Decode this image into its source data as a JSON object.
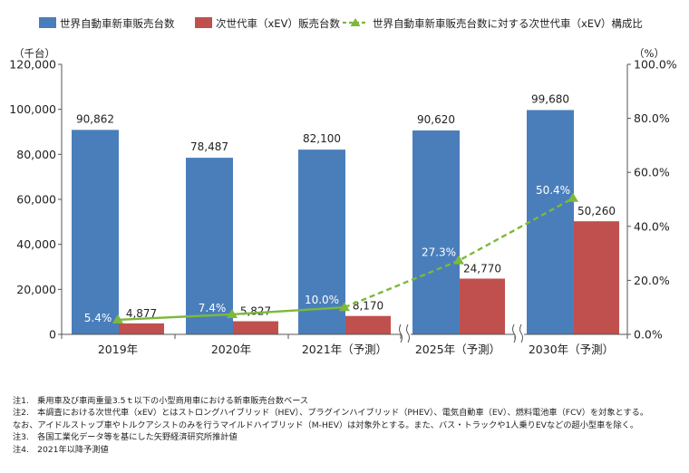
{
  "chart_data": {
    "type": "bar",
    "categories": [
      "2019年",
      "2020年",
      "2021年（予測）",
      "2025年（予測）",
      "2030年（予測）"
    ],
    "series": [
      {
        "name": "世界自動車新車販売台数",
        "type": "bar",
        "axis": "left",
        "color": "#4a7ebb",
        "values": [
          90862,
          78487,
          82100,
          90620,
          99680
        ],
        "labels": [
          "90,862",
          "78,487",
          "82,100",
          "90,620",
          "99,680"
        ]
      },
      {
        "name": "次世代車（xEV）販売台数",
        "type": "bar",
        "axis": "left",
        "color": "#c0504d",
        "values": [
          4877,
          5827,
          8170,
          24770,
          50260
        ],
        "labels": [
          "4,877",
          "5,827",
          "8,170",
          "24,770",
          "50,260"
        ]
      },
      {
        "name": "世界自動車新車販売台数に対する次世代車（xEV）構成比",
        "type": "line",
        "axis": "right",
        "color": "#7cb93a",
        "values": [
          5.4,
          7.4,
          10.0,
          27.3,
          50.4
        ],
        "labels": [
          "5.4%",
          "7.4%",
          "10.0%",
          "27.3%",
          "50.4%"
        ]
      }
    ],
    "y_left": {
      "unit": "（千台）",
      "min": 0,
      "max": 120000,
      "ticks": [
        "0",
        "20,000",
        "40,000",
        "60,000",
        "80,000",
        "100,000",
        "120,000"
      ]
    },
    "y_right": {
      "unit": "（%）",
      "min": 0,
      "max": 100,
      "ticks": [
        "0.0%",
        "20.0%",
        "40.0%",
        "60.0%",
        "80.0%",
        "100.0%"
      ]
    },
    "axis_breaks": [
      "between 2021年（予測） and 2025年（予測）",
      "between 2025年（予測） and 2030年（予測）"
    ],
    "grid": false,
    "legend": "top"
  },
  "colors": {
    "bar_total": "#4a7ebb",
    "bar_xev": "#c0504d",
    "line_ratio": "#7cb93a"
  },
  "notes": [
    "注1.　乗用車及び車両重量3.5ｔ以下の小型商用車における新車販売台数ベース",
    "注2.　本調査における次世代車（xEV）とはストロングハイブリッド（HEV）、プラグインハイブリッド（PHEV）、電気自動車（EV）、燃料電池車（FCV）を対象とする。",
    "なお、アイドルストップ車やトルクアシストのみを行うマイルドハイブリッド（M-HEV）は対象外とする。また、バス・トラックや1人乗りEVなどの超小型車を除く。",
    "注3.　各国工業化データ等を基にした矢野経済研究所推計値",
    "注4.　2021年以降予測値"
  ]
}
